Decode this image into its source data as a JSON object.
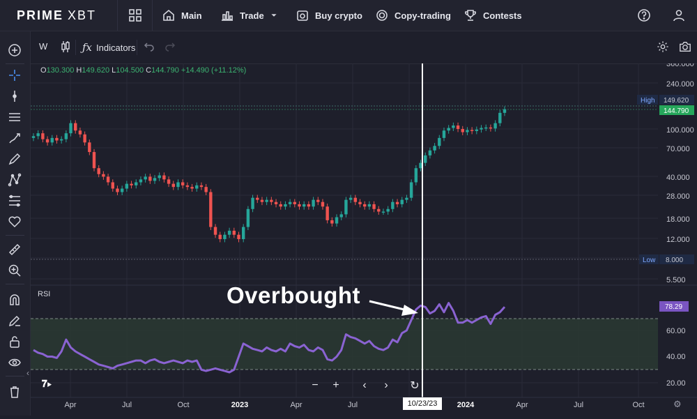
{
  "brand": {
    "name_bold": "PRIME",
    "name_light": "XBT"
  },
  "nav": [
    {
      "label": "Main",
      "icon": "home-icon"
    },
    {
      "label": "Trade",
      "icon": "bar-chart-icon"
    },
    {
      "label": "Buy crypto",
      "icon": "wallet-icon"
    },
    {
      "label": "Copy-trading",
      "icon": "copy-trading-icon"
    },
    {
      "label": "Contests",
      "icon": "trophy-icon"
    }
  ],
  "toolbar": {
    "interval": "W",
    "indicators_label": "Indicators"
  },
  "ohlc": {
    "o_key": "O",
    "o": "130.300",
    "h_key": "H",
    "h": "149.620",
    "l_key": "L",
    "l": "104.500",
    "c_key": "C",
    "c": "144.790",
    "change": "+14.490 (+11.12%)"
  },
  "price_scale": [
    "360.000",
    "240.000",
    "149.620",
    "144.790",
    "100.000",
    "70.000",
    "40.000",
    "28.000",
    "18.000",
    "12.000",
    "8.000",
    "5.500"
  ],
  "price_markers": {
    "high_label": "High",
    "high_value": "149.620",
    "last_value": "144.790",
    "low_label": "Low",
    "low_value": "8.000"
  },
  "rsi": {
    "label": "RSI",
    "current": "78.29",
    "scale": [
      "60.00",
      "40.00",
      "20.00"
    ]
  },
  "annotation": {
    "text": "Overbought"
  },
  "crosshair_date": "10/23/23",
  "time_axis": [
    "Apr",
    "Jul",
    "Oct",
    "2023",
    "Apr",
    "Jul",
    "Oct",
    "2024",
    "Apr",
    "Jul",
    "Oct"
  ],
  "colors": {
    "up": "#26a69a",
    "down": "#ef5350",
    "rsi": "#8a63d2",
    "background": "#1e1f2b"
  },
  "chart_data": {
    "type": "candlestick",
    "series": [
      {
        "name": "RSI",
        "values": [
          45,
          43,
          42,
          40,
          40,
          39,
          44,
          53,
          47,
          44,
          42,
          40,
          38,
          36,
          34,
          33,
          32,
          31,
          33,
          34,
          35,
          36,
          37,
          37,
          35,
          37,
          38,
          36,
          35,
          36,
          37,
          36,
          35,
          37,
          36,
          37,
          30,
          29,
          30,
          31,
          30,
          29,
          28,
          30,
          40,
          50,
          48,
          46,
          45,
          44,
          47,
          45,
          44,
          46,
          44,
          50,
          48,
          47,
          49,
          45,
          44,
          47,
          45,
          38,
          37,
          40,
          45,
          57,
          55,
          54,
          52,
          50,
          52,
          48,
          46,
          45,
          47,
          53,
          51,
          58,
          60,
          68,
          76,
          79,
          78,
          73,
          75,
          80,
          74,
          81,
          75,
          66,
          66,
          68,
          66,
          68,
          70,
          71,
          65,
          72,
          74,
          78
        ]
      }
    ],
    "rsi_levels": [
      70,
      30
    ]
  }
}
